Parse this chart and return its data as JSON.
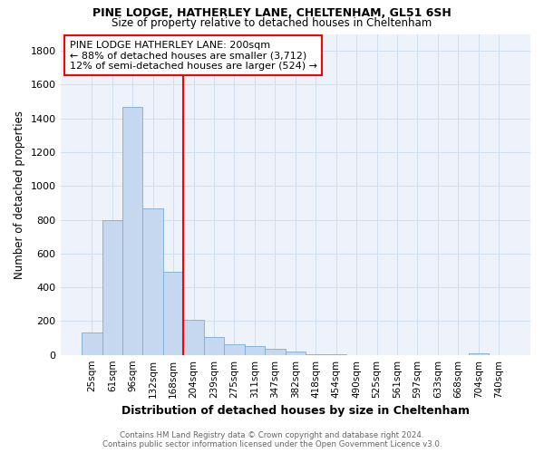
{
  "title_line1": "PINE LODGE, HATHERLEY LANE, CHELTENHAM, GL51 6SH",
  "title_line2": "Size of property relative to detached houses in Cheltenham",
  "xlabel": "Distribution of detached houses by size in Cheltenham",
  "ylabel": "Number of detached properties",
  "categories": [
    "25sqm",
    "61sqm",
    "96sqm",
    "132sqm",
    "168sqm",
    "204sqm",
    "239sqm",
    "275sqm",
    "311sqm",
    "347sqm",
    "382sqm",
    "418sqm",
    "454sqm",
    "490sqm",
    "525sqm",
    "561sqm",
    "597sqm",
    "633sqm",
    "668sqm",
    "704sqm",
    "740sqm"
  ],
  "values": [
    130,
    800,
    1470,
    870,
    490,
    210,
    105,
    65,
    50,
    35,
    20,
    5,
    2,
    0,
    0,
    0,
    0,
    0,
    0,
    10,
    0
  ],
  "bar_color": "#c5d8f0",
  "bar_edge_color": "#7aadd6",
  "grid_color": "#d0dff0",
  "background_color": "#edf2fb",
  "red_line_index": 5,
  "annotation_text_line1": "PINE LODGE HATHERLEY LANE: 200sqm",
  "annotation_text_line2": "← 88% of detached houses are smaller (3,712)",
  "annotation_text_line3": "12% of semi-detached houses are larger (524) →",
  "ylim": [
    0,
    1900
  ],
  "yticks": [
    0,
    200,
    400,
    600,
    800,
    1000,
    1200,
    1400,
    1600,
    1800
  ],
  "footnote1": "Contains HM Land Registry data © Crown copyright and database right 2024.",
  "footnote2": "Contains public sector information licensed under the Open Government Licence v3.0."
}
